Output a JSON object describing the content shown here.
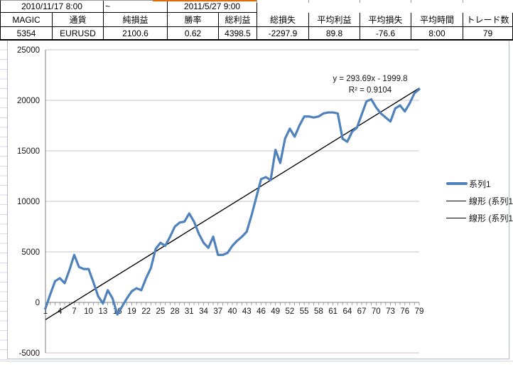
{
  "header_table": {
    "period": {
      "start": "2010/11/17 8:00",
      "tilde": "~",
      "end": "2011/5/27 9:00"
    },
    "headers": [
      "MAGIC",
      "通貨",
      "純損益",
      "勝率",
      "総利益",
      "総損失",
      "平均利益",
      "平均損失",
      "平均時間",
      "トレード数"
    ],
    "values": [
      "5354",
      "EURUSD",
      "2100.6",
      "0.62",
      "4398.5",
      "-2297.9",
      "89.8",
      "-76.6",
      "8:00",
      "79"
    ]
  },
  "colors": {
    "series_blue": "#4F81BD",
    "trendline_black": "#000000",
    "highlight_border_orange": "#E26B0A",
    "gridline_gray": "#C6C6C6",
    "axis_gray": "#808080"
  },
  "chart_data": {
    "type": "line",
    "title": "",
    "xlabel": "",
    "ylabel": "",
    "x_count": 79,
    "ylim": [
      -5000,
      25000
    ],
    "ytick_step": 5000,
    "grid": true,
    "legend_position": "right",
    "xtick_labels": [
      1,
      4,
      7,
      10,
      13,
      16,
      19,
      22,
      25,
      28,
      31,
      34,
      37,
      40,
      43,
      46,
      49,
      52,
      55,
      58,
      61,
      64,
      67,
      70,
      73,
      76,
      79
    ],
    "series": [
      {
        "name": "系列1",
        "color": "#4F81BD",
        "values": [
          -600,
          800,
          2100,
          2400,
          1900,
          3200,
          4700,
          3500,
          3300,
          3300,
          2000,
          600,
          -100,
          1200,
          400,
          -1200,
          -400,
          400,
          1100,
          1400,
          1200,
          2400,
          3400,
          5300,
          5900,
          5600,
          6500,
          7500,
          7900,
          8000,
          8800,
          8000,
          6800,
          5900,
          5400,
          6500,
          4700,
          4700,
          4900,
          5600,
          6100,
          6500,
          7000,
          8600,
          10400,
          12200,
          12400,
          12100,
          15100,
          13800,
          16200,
          17200,
          16400,
          17500,
          18400,
          18400,
          18300,
          18400,
          18700,
          18800,
          18800,
          18700,
          16200,
          15900,
          16900,
          17300,
          18600,
          19900,
          20100,
          19300,
          18700,
          18300,
          17900,
          19200,
          19500,
          18900,
          19700,
          20700,
          21100
        ]
      }
    ],
    "trendline": {
      "label": "線形 (系列1)",
      "equation": "y = 293.69x - 1999.8",
      "r_squared": "R² = 0.9104",
      "slope": 293.69,
      "intercept": -1999.8,
      "color": "#000000",
      "count": 2
    },
    "legend": [
      {
        "label": "系列1",
        "type": "series"
      },
      {
        "label": "線形 (系列1)",
        "type": "trend"
      },
      {
        "label": "線形 (系列1)",
        "type": "trend"
      }
    ]
  }
}
